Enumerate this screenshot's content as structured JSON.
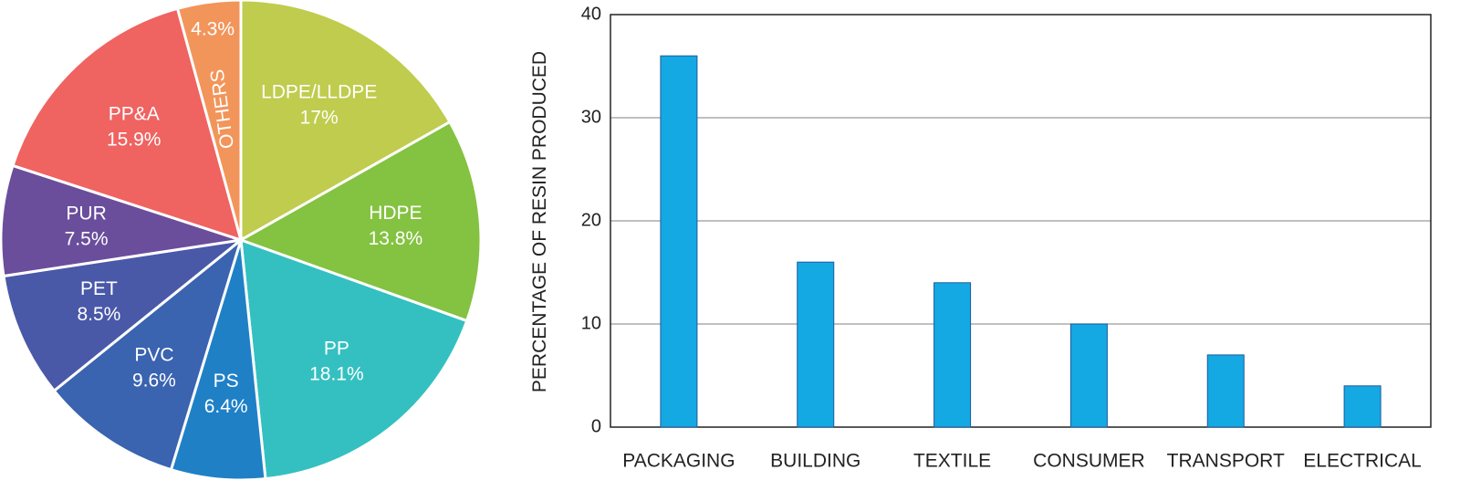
{
  "chart_data": [
    {
      "type": "pie",
      "slices": [
        {
          "name": "LDPE/LLDPE",
          "label": "17%",
          "value": 17.0,
          "color": "#bfcc4e"
        },
        {
          "name": "HDPE",
          "label": "13.8%",
          "value": 13.8,
          "color": "#84c241"
        },
        {
          "name": "PP",
          "label": "18.1%",
          "value": 18.1,
          "color": "#34c0c0"
        },
        {
          "name": "PS",
          "label": "6.4%",
          "value": 6.4,
          "color": "#1f80c6"
        },
        {
          "name": "PVC",
          "label": "9.6%",
          "value": 9.6,
          "color": "#3a63b0"
        },
        {
          "name": "PET",
          "label": "8.5%",
          "value": 8.5,
          "color": "#4a58a8"
        },
        {
          "name": "PUR",
          "label": "7.5%",
          "value": 7.5,
          "color": "#6a4e9c"
        },
        {
          "name": "PP&A",
          "label": "15.9%",
          "value": 15.9,
          "color": "#ef6361"
        },
        {
          "name": "OTHERS",
          "label": "4.3%",
          "value": 4.3,
          "color": "#f2955a"
        }
      ],
      "start_angle_deg": 0,
      "direction": "clockwise"
    },
    {
      "type": "bar",
      "categories": [
        "PACKAGING",
        "BUILDING",
        "TEXTILE",
        "CONSUMER",
        "TRANSPORT",
        "ELECTRICAL"
      ],
      "values": [
        36,
        16,
        14,
        10,
        7,
        4
      ],
      "ylabel": "PERCENTAGE OF RESIN PRODUCED",
      "xlabel": "",
      "ylim": [
        0,
        40
      ],
      "yticks": [
        0,
        10,
        20,
        30,
        40
      ],
      "grid": "horizontal",
      "bar_color": "#14a9e2",
      "bar_edge_color": "#1c5aa0"
    }
  ]
}
